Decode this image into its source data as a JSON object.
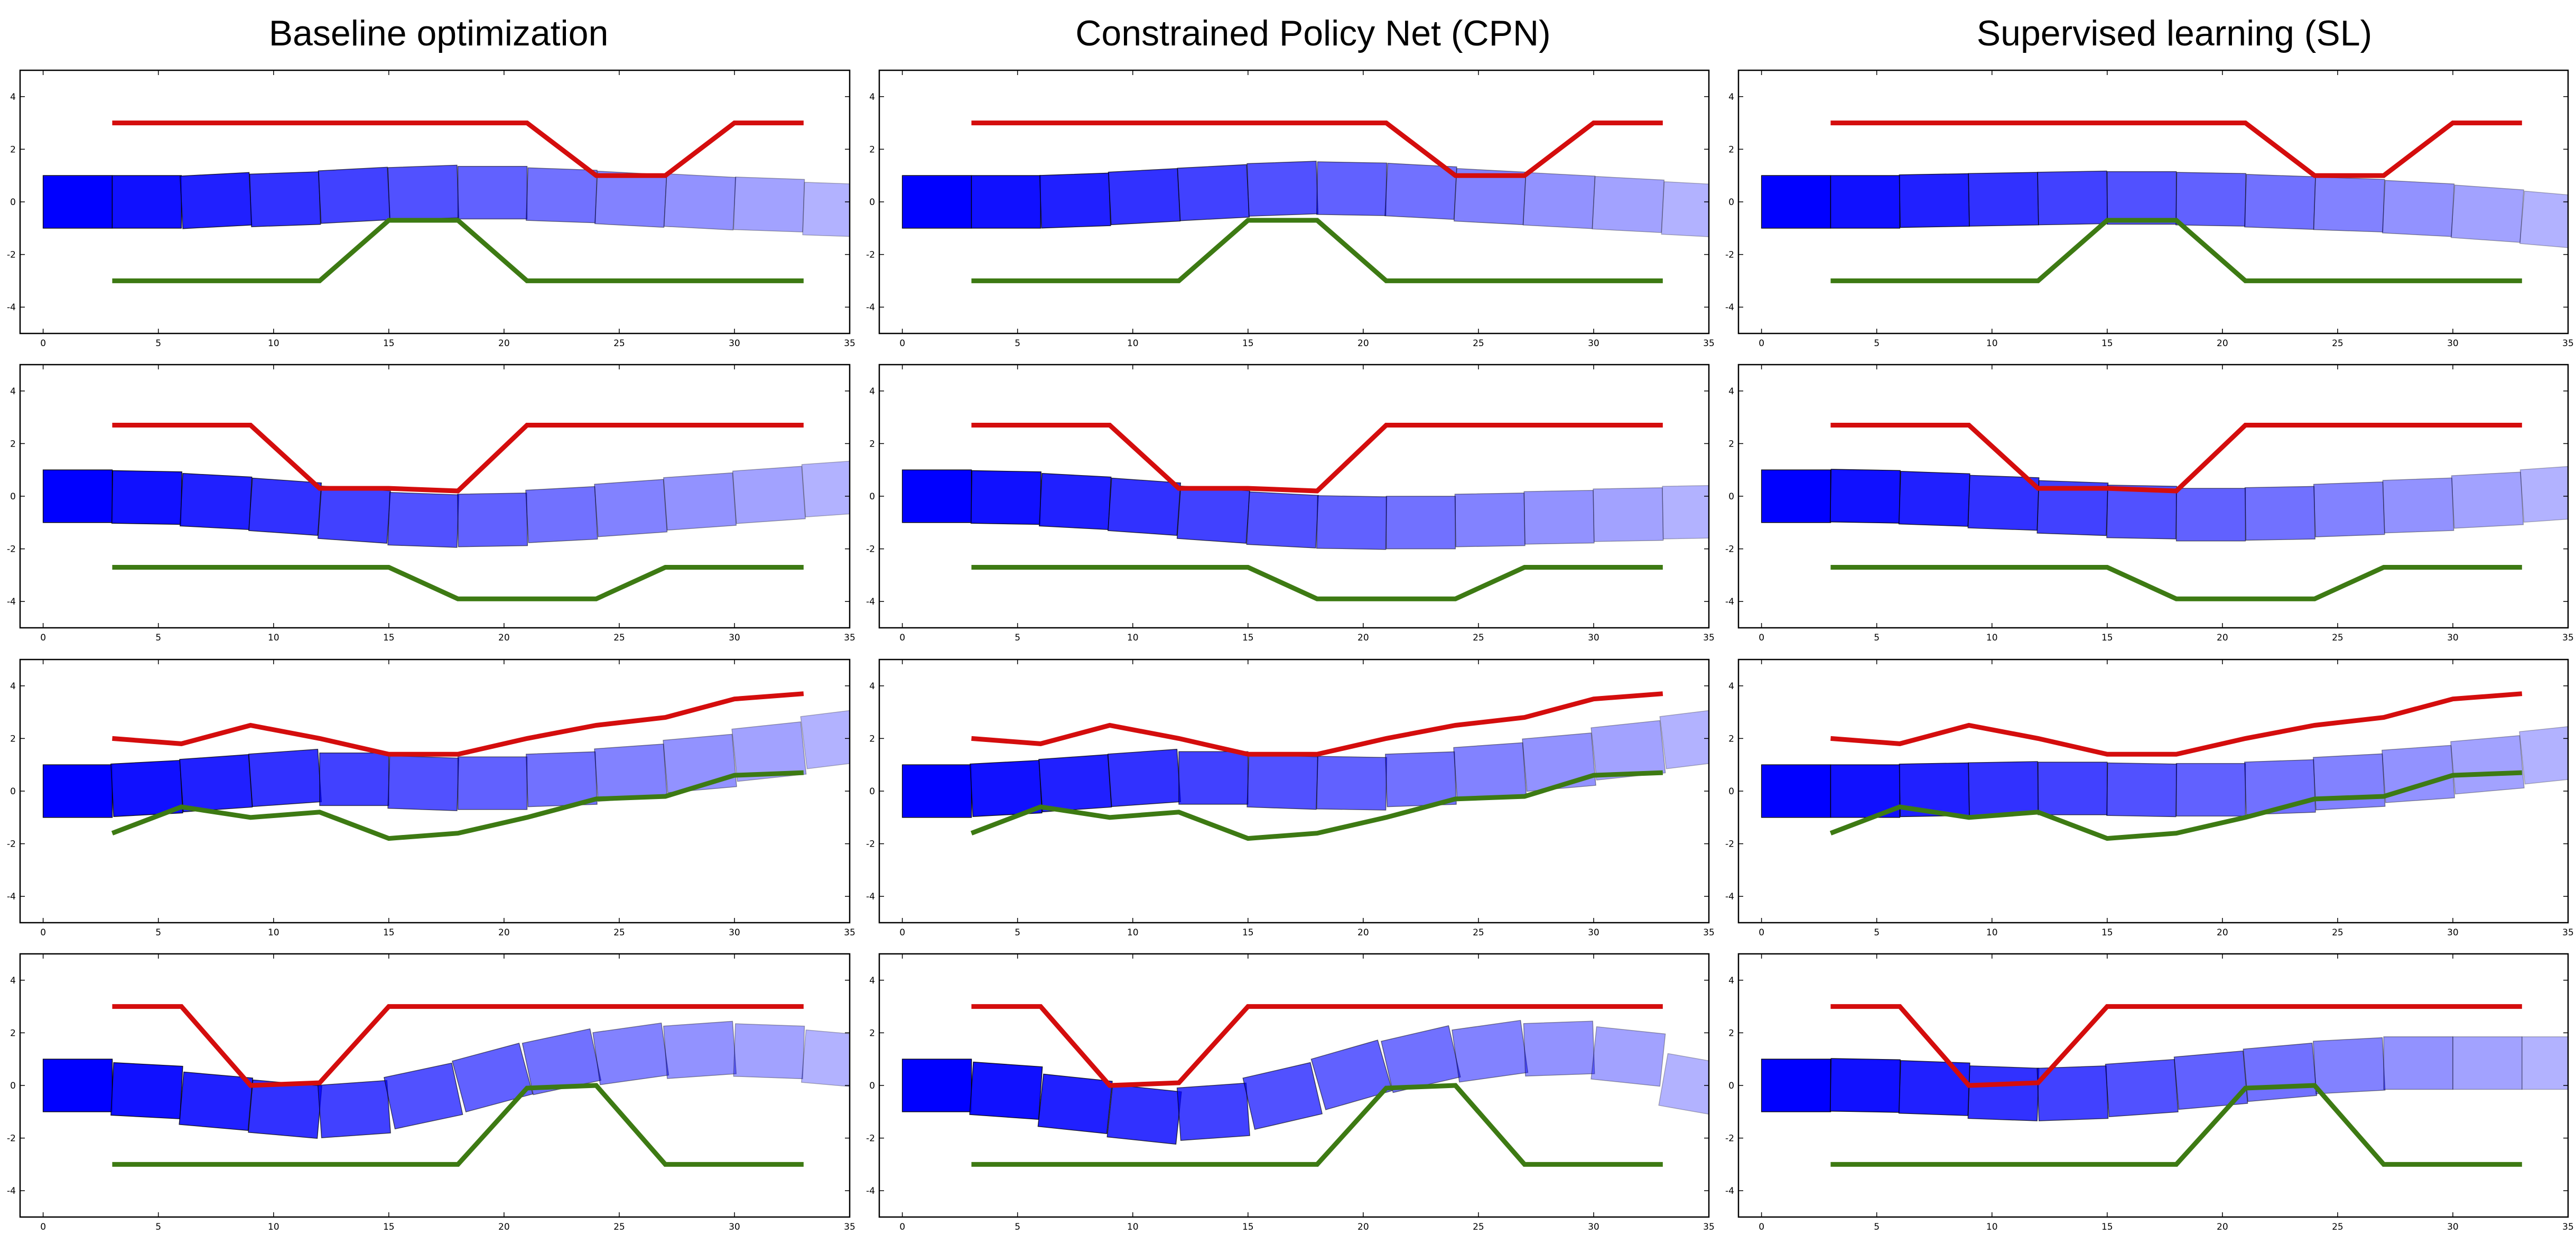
{
  "columns": [
    "Baseline optimization",
    "Constrained Policy Net (CPN)",
    "Supervised learning (SL)"
  ],
  "axes": {
    "xlim": [
      -1,
      35
    ],
    "ylim": [
      -5,
      5
    ],
    "xticks": [
      0,
      5,
      10,
      15,
      20,
      25,
      30,
      35
    ],
    "yticks": [
      -4,
      -2,
      0,
      2,
      4
    ]
  },
  "colors": {
    "upper": "#d40d0d",
    "lower": "#3d7a13",
    "box": "#0000ff",
    "frame": "#000000"
  },
  "chart_data": [
    {
      "row": 1,
      "upper": {
        "x": [
          3,
          6,
          9,
          12,
          15,
          18,
          21,
          24,
          27,
          30,
          33
        ],
        "y": [
          3,
          3,
          3,
          3,
          3,
          3,
          3,
          1,
          1,
          3,
          3
        ]
      },
      "lower": {
        "x": [
          3,
          6,
          9,
          12,
          15,
          18,
          21,
          24,
          27,
          30,
          33
        ],
        "y": [
          -3,
          -3,
          -3,
          -3,
          -0.7,
          -0.7,
          -3,
          -3,
          -3,
          -3,
          -3
        ]
      },
      "trajectories": [
        [
          [
            0,
            0,
            0
          ],
          [
            3,
            0,
            0
          ],
          [
            6,
            0.05,
            3
          ],
          [
            9,
            0.1,
            2
          ],
          [
            12,
            0.25,
            3
          ],
          [
            15,
            0.35,
            2
          ],
          [
            18,
            0.35,
            0
          ],
          [
            21,
            0.25,
            -2
          ],
          [
            24,
            0.1,
            -3
          ],
          [
            27,
            0,
            -3
          ],
          [
            30,
            -0.1,
            -2
          ],
          [
            33,
            -0.3,
            -2
          ]
        ],
        [
          [
            0,
            0,
            0
          ],
          [
            3,
            0,
            0
          ],
          [
            6,
            0.05,
            2
          ],
          [
            9,
            0.2,
            3
          ],
          [
            12,
            0.35,
            3
          ],
          [
            15,
            0.5,
            2
          ],
          [
            18,
            0.5,
            -1
          ],
          [
            21,
            0.4,
            -3
          ],
          [
            24,
            0.2,
            -3
          ],
          [
            27,
            0.05,
            -3
          ],
          [
            30,
            -0.1,
            -3
          ],
          [
            33,
            -0.3,
            -3
          ]
        ],
        [
          [
            0,
            0,
            0
          ],
          [
            3,
            0,
            0
          ],
          [
            6,
            0.05,
            1
          ],
          [
            9,
            0.1,
            1
          ],
          [
            12,
            0.15,
            1
          ],
          [
            15,
            0.15,
            0
          ],
          [
            18,
            0.1,
            -1
          ],
          [
            21,
            0,
            -2
          ],
          [
            24,
            -0.1,
            -2
          ],
          [
            27,
            -0.25,
            -3
          ],
          [
            30,
            -0.45,
            -4
          ],
          [
            33,
            -0.7,
            -5
          ]
        ]
      ]
    },
    {
      "row": 2,
      "upper": {
        "x": [
          3,
          6,
          9,
          12,
          15,
          18,
          21,
          24,
          27,
          30,
          33
        ],
        "y": [
          2.7,
          2.7,
          2.7,
          0.3,
          0.3,
          0.2,
          2.7,
          2.7,
          2.7,
          2.7,
          2.7
        ]
      },
      "lower": {
        "x": [
          3,
          6,
          9,
          12,
          15,
          18,
          21,
          24,
          27,
          30,
          33
        ],
        "y": [
          -2.7,
          -2.7,
          -2.7,
          -2.7,
          -2.7,
          -3.9,
          -3.9,
          -3.9,
          -2.7,
          -2.7,
          -2.7
        ]
      },
      "trajectories": [
        [
          [
            0,
            0,
            0
          ],
          [
            3,
            -0.05,
            -1
          ],
          [
            6,
            -0.2,
            -3
          ],
          [
            9,
            -0.4,
            -4
          ],
          [
            12,
            -0.7,
            -4
          ],
          [
            15,
            -0.9,
            -2
          ],
          [
            18,
            -0.9,
            1
          ],
          [
            21,
            -0.7,
            3
          ],
          [
            24,
            -0.45,
            4
          ],
          [
            27,
            -0.2,
            4
          ],
          [
            30,
            0.05,
            4
          ],
          [
            33,
            0.3,
            4
          ]
        ],
        [
          [
            0,
            0,
            0
          ],
          [
            3,
            -0.05,
            -1
          ],
          [
            6,
            -0.2,
            -3
          ],
          [
            9,
            -0.4,
            -4
          ],
          [
            12,
            -0.7,
            -4
          ],
          [
            15,
            -0.9,
            -3
          ],
          [
            18,
            -1,
            -1
          ],
          [
            21,
            -1,
            0
          ],
          [
            24,
            -0.9,
            1
          ],
          [
            27,
            -0.8,
            1
          ],
          [
            30,
            -0.7,
            1
          ],
          [
            33,
            -0.6,
            1
          ]
        ],
        [
          [
            0,
            0,
            0
          ],
          [
            3,
            0,
            -1
          ],
          [
            6,
            -0.1,
            -2
          ],
          [
            9,
            -0.25,
            -2
          ],
          [
            12,
            -0.45,
            -2
          ],
          [
            15,
            -0.6,
            -1
          ],
          [
            18,
            -0.7,
            0
          ],
          [
            21,
            -0.65,
            1
          ],
          [
            24,
            -0.5,
            2
          ],
          [
            27,
            -0.35,
            2
          ],
          [
            30,
            -0.15,
            3
          ],
          [
            33,
            0.1,
            4
          ]
        ]
      ]
    },
    {
      "row": 3,
      "upper": {
        "x": [
          3,
          6,
          9,
          12,
          15,
          18,
          21,
          24,
          27,
          30,
          33
        ],
        "y": [
          2,
          1.8,
          2.5,
          2,
          1.4,
          1.4,
          2,
          2.5,
          2.8,
          3.5,
          3.7
        ]
      },
      "lower": {
        "x": [
          3,
          6,
          9,
          12,
          15,
          18,
          21,
          24,
          27,
          30,
          33
        ],
        "y": [
          -1.6,
          -0.6,
          -1,
          -0.8,
          -1.8,
          -1.6,
          -1,
          -0.3,
          -0.2,
          0.6,
          0.7
        ]
      },
      "trajectories": [
        [
          [
            0,
            0,
            0
          ],
          [
            3,
            0.1,
            3
          ],
          [
            6,
            0.3,
            4
          ],
          [
            9,
            0.5,
            4
          ],
          [
            12,
            0.45,
            0
          ],
          [
            15,
            0.3,
            -2
          ],
          [
            18,
            0.3,
            0
          ],
          [
            21,
            0.45,
            2
          ],
          [
            24,
            0.7,
            4
          ],
          [
            27,
            1.05,
            5
          ],
          [
            30,
            1.5,
            6
          ],
          [
            33,
            2,
            7
          ]
        ],
        [
          [
            0,
            0,
            0
          ],
          [
            3,
            0.1,
            3
          ],
          [
            6,
            0.3,
            4
          ],
          [
            9,
            0.5,
            4
          ],
          [
            12,
            0.5,
            0
          ],
          [
            15,
            0.35,
            -2
          ],
          [
            18,
            0.3,
            -1
          ],
          [
            21,
            0.45,
            2
          ],
          [
            24,
            0.75,
            4
          ],
          [
            27,
            1.1,
            5
          ],
          [
            30,
            1.55,
            6
          ],
          [
            33,
            2,
            7
          ]
        ],
        [
          [
            0,
            0,
            0
          ],
          [
            3,
            0,
            0
          ],
          [
            6,
            0.05,
            1
          ],
          [
            9,
            0.1,
            1
          ],
          [
            12,
            0.1,
            0
          ],
          [
            15,
            0.05,
            -1
          ],
          [
            18,
            0.05,
            0
          ],
          [
            21,
            0.15,
            2
          ],
          [
            24,
            0.35,
            3
          ],
          [
            27,
            0.65,
            4
          ],
          [
            30,
            1,
            5
          ],
          [
            33,
            1.4,
            6
          ]
        ]
      ]
    },
    {
      "row": 4,
      "upper": {
        "x": [
          3,
          6,
          9,
          12,
          15,
          18,
          21,
          24,
          27,
          30,
          33
        ],
        "y": [
          3,
          3,
          0,
          0.1,
          3,
          3,
          3,
          3,
          3,
          3,
          3
        ]
      },
      "lower": {
        "x": [
          3,
          6,
          9,
          12,
          15,
          18,
          21,
          24,
          27,
          30,
          33
        ],
        "y": [
          -3,
          -3,
          -3,
          -3,
          -3,
          -3,
          -0.1,
          0,
          -3,
          -3,
          -3
        ]
      },
      "trajectories": [
        [
          [
            0,
            0,
            0
          ],
          [
            3,
            -0.2,
            -3
          ],
          [
            6,
            -0.6,
            -5
          ],
          [
            9,
            -0.9,
            -5
          ],
          [
            12,
            -0.9,
            4
          ],
          [
            15,
            -0.4,
            12
          ],
          [
            18,
            0.3,
            15
          ],
          [
            21,
            0.9,
            12
          ],
          [
            24,
            1.2,
            8
          ],
          [
            27,
            1.35,
            4
          ],
          [
            30,
            1.3,
            -2
          ],
          [
            33,
            1,
            -5
          ]
        ],
        [
          [
            0,
            0,
            0
          ],
          [
            3,
            -0.2,
            -4
          ],
          [
            6,
            -0.7,
            -6
          ],
          [
            9,
            -1.1,
            -6
          ],
          [
            12,
            -1,
            4
          ],
          [
            15,
            -0.4,
            13
          ],
          [
            18,
            0.4,
            16
          ],
          [
            21,
            1,
            13
          ],
          [
            24,
            1.3,
            8
          ],
          [
            27,
            1.4,
            2
          ],
          [
            30,
            1.1,
            -6
          ],
          [
            33,
            0,
            -10
          ]
        ],
        [
          [
            0,
            0,
            0
          ],
          [
            3,
            0,
            -1
          ],
          [
            6,
            -0.1,
            -2
          ],
          [
            9,
            -0.3,
            -2
          ],
          [
            12,
            -0.3,
            2
          ],
          [
            15,
            -0.1,
            4
          ],
          [
            18,
            0.2,
            5
          ],
          [
            21,
            0.5,
            5
          ],
          [
            24,
            0.75,
            3
          ],
          [
            27,
            0.85,
            0
          ],
          [
            30,
            0.85,
            0
          ],
          [
            33,
            0.85,
            0
          ]
        ]
      ]
    }
  ]
}
